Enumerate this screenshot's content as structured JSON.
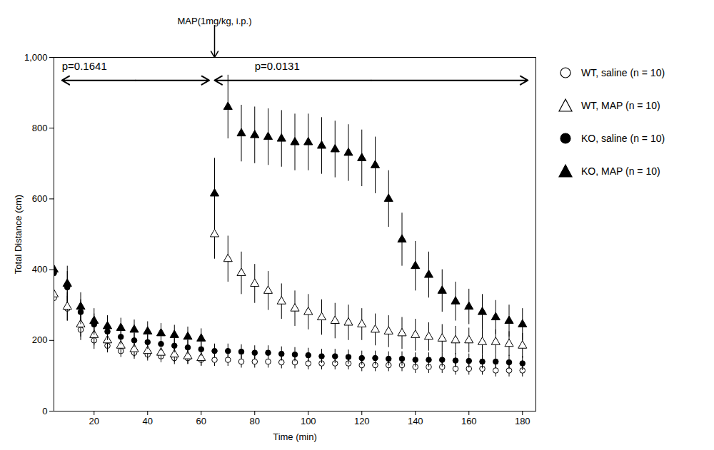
{
  "chart_data": {
    "type": "scatter",
    "title": "",
    "xlabel": "Time (min)",
    "ylabel": "Total Distance (cm)",
    "xlim": [
      5,
      185
    ],
    "ylim": [
      0,
      1000
    ],
    "xticks": [
      20,
      40,
      60,
      80,
      100,
      120,
      140,
      160,
      180
    ],
    "yticks": [
      0,
      200,
      400,
      600,
      800,
      1000
    ],
    "x": [
      5,
      10,
      15,
      20,
      25,
      30,
      35,
      40,
      45,
      50,
      55,
      60,
      65,
      70,
      75,
      80,
      85,
      90,
      95,
      100,
      105,
      110,
      115,
      120,
      125,
      130,
      135,
      140,
      145,
      150,
      155,
      160,
      165,
      170,
      175,
      180
    ],
    "series": [
      {
        "name": "WT, saline (n = 10)",
        "color": "#000000",
        "marker": "open_circle",
        "values": [
          320,
          290,
          230,
          200,
          185,
          170,
          165,
          160,
          155,
          150,
          150,
          145,
          145,
          145,
          140,
          140,
          140,
          138,
          138,
          135,
          135,
          135,
          135,
          130,
          130,
          130,
          130,
          125,
          125,
          125,
          120,
          120,
          120,
          115,
          115,
          115
        ],
        "errors": [
          40,
          35,
          30,
          25,
          20,
          18,
          18,
          18,
          18,
          18,
          18,
          18,
          18,
          18,
          18,
          18,
          18,
          18,
          18,
          18,
          18,
          18,
          18,
          18,
          18,
          18,
          18,
          18,
          18,
          18,
          18,
          18,
          18,
          18,
          18,
          18
        ]
      },
      {
        "name": "WT, MAP (n = 10)",
        "color": "#000000",
        "marker": "open_triangle",
        "values": [
          330,
          295,
          245,
          215,
          200,
          185,
          175,
          170,
          165,
          160,
          155,
          150,
          500,
          430,
          390,
          360,
          340,
          310,
          290,
          280,
          265,
          255,
          250,
          245,
          230,
          225,
          220,
          215,
          210,
          205,
          200,
          200,
          195,
          195,
          190,
          185
        ],
        "errors": [
          45,
          40,
          35,
          30,
          25,
          22,
          22,
          22,
          22,
          22,
          22,
          22,
          70,
          65,
          60,
          55,
          55,
          50,
          50,
          50,
          50,
          50,
          50,
          45,
          45,
          45,
          45,
          45,
          40,
          40,
          40,
          35,
          35,
          35,
          35,
          35
        ]
      },
      {
        "name": "KO, saline (n = 10)",
        "color": "#000000",
        "marker": "circle",
        "values": [
          390,
          350,
          280,
          245,
          225,
          210,
          200,
          195,
          190,
          185,
          180,
          175,
          170,
          170,
          168,
          165,
          165,
          162,
          160,
          158,
          155,
          155,
          153,
          150,
          150,
          148,
          148,
          145,
          145,
          145,
          143,
          142,
          140,
          140,
          138,
          135
        ],
        "errors": [
          50,
          45,
          35,
          30,
          25,
          22,
          20,
          20,
          20,
          20,
          20,
          20,
          20,
          20,
          20,
          20,
          20,
          20,
          20,
          20,
          20,
          20,
          20,
          20,
          20,
          20,
          20,
          20,
          20,
          20,
          20,
          20,
          20,
          20,
          20,
          20
        ]
      },
      {
        "name": "KO, MAP (n = 10)",
        "color": "#000000",
        "marker": "triangle",
        "values": [
          400,
          360,
          295,
          255,
          240,
          235,
          230,
          225,
          220,
          215,
          210,
          205,
          615,
          860,
          785,
          780,
          775,
          770,
          760,
          760,
          750,
          740,
          730,
          715,
          695,
          600,
          485,
          410,
          385,
          340,
          310,
          295,
          280,
          265,
          255,
          245
        ],
        "errors": [
          55,
          50,
          40,
          35,
          30,
          28,
          28,
          28,
          28,
          28,
          28,
          28,
          100,
          90,
          80,
          80,
          80,
          80,
          80,
          80,
          80,
          80,
          80,
          80,
          80,
          80,
          75,
          70,
          65,
          60,
          55,
          50,
          50,
          48,
          45,
          45
        ]
      }
    ],
    "annotations": [
      {
        "text": "MAP(1mg/kg, i.p.)",
        "x": 65,
        "y": 1090,
        "arrow_to": [
          65,
          1000
        ]
      },
      {
        "text": "p=0.1641",
        "x": 8,
        "y": 975,
        "span": [
          8,
          63
        ],
        "span_y": 935
      },
      {
        "text": "p=0.0131",
        "x": 80,
        "y": 975,
        "span": [
          65,
          182
        ],
        "span_y": 935
      }
    ],
    "legend": "right"
  }
}
